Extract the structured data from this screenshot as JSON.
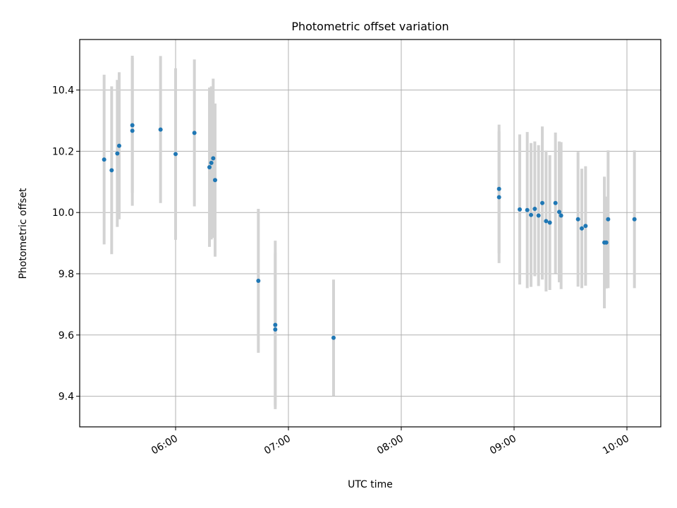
{
  "chart_data": {
    "type": "scatter",
    "title": "Photometric offset variation",
    "xlabel": "UTC time",
    "ylabel": "Photometric offset",
    "x_ticks": [
      "06:00",
      "07:00",
      "08:00",
      "09:00",
      "10:00"
    ],
    "xlim": [
      "05:09",
      "10:18"
    ],
    "ylim": [
      9.3,
      10.565
    ],
    "y_ticks": [
      "9.4",
      "9.6",
      "9.8",
      "10.0",
      "10.2",
      "10.4"
    ],
    "grid": true,
    "colors": {
      "points": "#1f77b4",
      "error_bars": "#d3d3d3",
      "grid": "#b0b0b0"
    },
    "points": [
      {
        "time": "05:22",
        "y": 10.173,
        "err": 0.277
      },
      {
        "time": "05:26",
        "y": 10.138,
        "err": 0.274
      },
      {
        "time": "05:29",
        "y": 10.193,
        "err": 0.24
      },
      {
        "time": "05:30",
        "y": 10.218,
        "err": 0.24
      },
      {
        "time": "05:37",
        "y": 10.267,
        "err": 0.245
      },
      {
        "time": "05:37",
        "y": 10.285,
        "err": 0.22
      },
      {
        "time": "05:52",
        "y": 10.271,
        "err": 0.24
      },
      {
        "time": "06:00",
        "y": 10.191,
        "err": 0.28
      },
      {
        "time": "06:10",
        "y": 10.26,
        "err": 0.24
      },
      {
        "time": "06:18",
        "y": 10.148,
        "err": 0.26
      },
      {
        "time": "06:19",
        "y": 10.162,
        "err": 0.25
      },
      {
        "time": "06:20",
        "y": 10.177,
        "err": 0.26
      },
      {
        "time": "06:21",
        "y": 10.106,
        "err": 0.25
      },
      {
        "time": "06:44",
        "y": 9.777,
        "err": 0.235
      },
      {
        "time": "06:53",
        "y": 9.633,
        "err": 0.275
      },
      {
        "time": "06:53",
        "y": 9.618,
        "err": 0.25
      },
      {
        "time": "07:24",
        "y": 9.591,
        "err": 0.19
      },
      {
        "time": "08:52",
        "y": 10.077,
        "err": 0.21
      },
      {
        "time": "08:52",
        "y": 10.05,
        "err": 0.215
      },
      {
        "time": "09:03",
        "y": 10.01,
        "err": 0.245
      },
      {
        "time": "09:07",
        "y": 10.008,
        "err": 0.255
      },
      {
        "time": "09:09",
        "y": 9.992,
        "err": 0.235
      },
      {
        "time": "09:11",
        "y": 10.012,
        "err": 0.22
      },
      {
        "time": "09:13",
        "y": 9.99,
        "err": 0.23
      },
      {
        "time": "09:15",
        "y": 10.031,
        "err": 0.25
      },
      {
        "time": "09:17",
        "y": 9.972,
        "err": 0.23
      },
      {
        "time": "09:19",
        "y": 9.967,
        "err": 0.22
      },
      {
        "time": "09:22",
        "y": 10.031,
        "err": 0.23
      },
      {
        "time": "09:24",
        "y": 10.002,
        "err": 0.23
      },
      {
        "time": "09:25",
        "y": 9.99,
        "err": 0.24
      },
      {
        "time": "09:34",
        "y": 9.978,
        "err": 0.22
      },
      {
        "time": "09:36",
        "y": 9.948,
        "err": 0.195
      },
      {
        "time": "09:38",
        "y": 9.956,
        "err": 0.195
      },
      {
        "time": "09:48",
        "y": 9.902,
        "err": 0.215
      },
      {
        "time": "09:49",
        "y": 9.902,
        "err": 0.15
      },
      {
        "time": "09:50",
        "y": 9.978,
        "err": 0.225
      },
      {
        "time": "10:04",
        "y": 9.978,
        "err": 0.225
      }
    ]
  }
}
